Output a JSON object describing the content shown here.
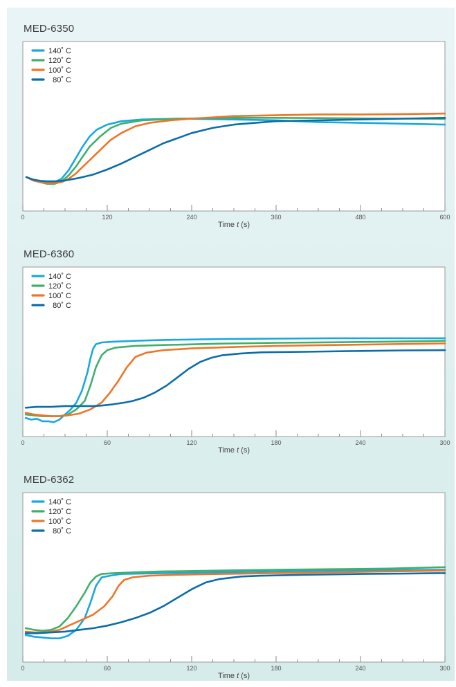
{
  "chart_data": [
    {
      "type": "line",
      "title": "MED-6350",
      "xlabel_prefix": "Time ",
      "xlabel_var": "t",
      "xlabel_unit": " (s)",
      "xlim": [
        0,
        600
      ],
      "ylim": [
        0,
        1
      ],
      "xticks": [
        0,
        120,
        240,
        360,
        480,
        600
      ],
      "minor_step": 30,
      "grid": false,
      "legend_position": "top-left",
      "series": [
        {
          "name": "140˚ C",
          "color": "#1aa7df",
          "points": [
            [
              5,
              0.2
            ],
            [
              15,
              0.18
            ],
            [
              25,
              0.17
            ],
            [
              35,
              0.165
            ],
            [
              45,
              0.17
            ],
            [
              55,
              0.19
            ],
            [
              65,
              0.24
            ],
            [
              75,
              0.31
            ],
            [
              85,
              0.38
            ],
            [
              95,
              0.44
            ],
            [
              105,
              0.48
            ],
            [
              120,
              0.51
            ],
            [
              140,
              0.53
            ],
            [
              170,
              0.54
            ],
            [
              220,
              0.545
            ],
            [
              300,
              0.54
            ],
            [
              360,
              0.535
            ],
            [
              420,
              0.525
            ],
            [
              480,
              0.52
            ],
            [
              540,
              0.515
            ],
            [
              600,
              0.51
            ]
          ]
        },
        {
          "name": "120˚ C",
          "color": "#3fb06b",
          "points": [
            [
              5,
              0.2
            ],
            [
              15,
              0.18
            ],
            [
              25,
              0.17
            ],
            [
              35,
              0.16
            ],
            [
              45,
              0.16
            ],
            [
              55,
              0.175
            ],
            [
              65,
              0.21
            ],
            [
              75,
              0.26
            ],
            [
              85,
              0.32
            ],
            [
              95,
              0.38
            ],
            [
              110,
              0.44
            ],
            [
              125,
              0.49
            ],
            [
              140,
              0.515
            ],
            [
              170,
              0.535
            ],
            [
              220,
              0.545
            ],
            [
              300,
              0.55
            ],
            [
              360,
              0.55
            ],
            [
              420,
              0.548
            ],
            [
              480,
              0.546
            ],
            [
              540,
              0.545
            ],
            [
              600,
              0.544
            ]
          ]
        },
        {
          "name": "100˚ C",
          "color": "#ee7527",
          "points": [
            [
              5,
              0.2
            ],
            [
              15,
              0.18
            ],
            [
              25,
              0.17
            ],
            [
              35,
              0.165
            ],
            [
              45,
              0.165
            ],
            [
              55,
              0.17
            ],
            [
              65,
              0.19
            ],
            [
              75,
              0.22
            ],
            [
              85,
              0.26
            ],
            [
              95,
              0.3
            ],
            [
              110,
              0.36
            ],
            [
              125,
              0.42
            ],
            [
              140,
              0.46
            ],
            [
              160,
              0.5
            ],
            [
              180,
              0.52
            ],
            [
              210,
              0.535
            ],
            [
              240,
              0.545
            ],
            [
              300,
              0.56
            ],
            [
              360,
              0.565
            ],
            [
              420,
              0.57
            ],
            [
              480,
              0.57
            ],
            [
              540,
              0.572
            ],
            [
              600,
              0.575
            ]
          ]
        },
        {
          "name": "80˚ C",
          "color": "#0b6da8",
          "points": [
            [
              5,
              0.2
            ],
            [
              15,
              0.185
            ],
            [
              25,
              0.178
            ],
            [
              35,
              0.175
            ],
            [
              45,
              0.175
            ],
            [
              60,
              0.18
            ],
            [
              80,
              0.195
            ],
            [
              100,
              0.215
            ],
            [
              120,
              0.245
            ],
            [
              140,
              0.28
            ],
            [
              160,
              0.32
            ],
            [
              180,
              0.36
            ],
            [
              200,
              0.4
            ],
            [
              220,
              0.43
            ],
            [
              240,
              0.46
            ],
            [
              270,
              0.49
            ],
            [
              300,
              0.51
            ],
            [
              330,
              0.52
            ],
            [
              360,
              0.53
            ],
            [
              420,
              0.535
            ],
            [
              480,
              0.54
            ],
            [
              540,
              0.545
            ],
            [
              600,
              0.55
            ]
          ]
        }
      ]
    },
    {
      "type": "line",
      "title": "MED-6360",
      "xlabel_prefix": "Time ",
      "xlabel_var": "t",
      "xlabel_unit": " (s)",
      "xlim": [
        0,
        300
      ],
      "ylim": [
        0,
        1
      ],
      "xticks": [
        0,
        60,
        120,
        180,
        240,
        300
      ],
      "minor_step": 15,
      "grid": false,
      "legend_position": "top-left",
      "series": [
        {
          "name": "140˚ C",
          "color": "#1aa7df",
          "points": [
            [
              2,
              0.11
            ],
            [
              6,
              0.1
            ],
            [
              10,
              0.105
            ],
            [
              14,
              0.09
            ],
            [
              18,
              0.09
            ],
            [
              22,
              0.085
            ],
            [
              26,
              0.1
            ],
            [
              30,
              0.13
            ],
            [
              34,
              0.16
            ],
            [
              38,
              0.2
            ],
            [
              42,
              0.27
            ],
            [
              46,
              0.38
            ],
            [
              48,
              0.46
            ],
            [
              50,
              0.52
            ],
            [
              52,
              0.545
            ],
            [
              56,
              0.555
            ],
            [
              65,
              0.56
            ],
            [
              80,
              0.565
            ],
            [
              100,
              0.57
            ],
            [
              140,
              0.575
            ],
            [
              180,
              0.578
            ],
            [
              220,
              0.58
            ],
            [
              260,
              0.58
            ],
            [
              300,
              0.58
            ]
          ]
        },
        {
          "name": "120˚ C",
          "color": "#3fb06b",
          "points": [
            [
              2,
              0.13
            ],
            [
              8,
              0.125
            ],
            [
              14,
              0.12
            ],
            [
              20,
              0.12
            ],
            [
              26,
              0.12
            ],
            [
              32,
              0.13
            ],
            [
              38,
              0.16
            ],
            [
              44,
              0.21
            ],
            [
              48,
              0.3
            ],
            [
              52,
              0.41
            ],
            [
              56,
              0.48
            ],
            [
              60,
              0.51
            ],
            [
              66,
              0.525
            ],
            [
              80,
              0.535
            ],
            [
              100,
              0.54
            ],
            [
              140,
              0.548
            ],
            [
              180,
              0.553
            ],
            [
              220,
              0.556
            ],
            [
              260,
              0.56
            ],
            [
              300,
              0.565
            ]
          ]
        },
        {
          "name": "100˚ C",
          "color": "#ee7527",
          "points": [
            [
              2,
              0.14
            ],
            [
              8,
              0.13
            ],
            [
              14,
              0.125
            ],
            [
              20,
              0.12
            ],
            [
              26,
              0.12
            ],
            [
              32,
              0.125
            ],
            [
              40,
              0.135
            ],
            [
              48,
              0.16
            ],
            [
              56,
              0.2
            ],
            [
              62,
              0.26
            ],
            [
              68,
              0.33
            ],
            [
              74,
              0.41
            ],
            [
              80,
              0.47
            ],
            [
              88,
              0.495
            ],
            [
              100,
              0.51
            ],
            [
              120,
              0.52
            ],
            [
              150,
              0.528
            ],
            [
              180,
              0.535
            ],
            [
              220,
              0.54
            ],
            [
              260,
              0.545
            ],
            [
              300,
              0.55
            ]
          ]
        },
        {
          "name": "80˚ C",
          "color": "#0b6da8",
          "points": [
            [
              2,
              0.17
            ],
            [
              10,
              0.175
            ],
            [
              20,
              0.175
            ],
            [
              30,
              0.18
            ],
            [
              40,
              0.18
            ],
            [
              50,
              0.18
            ],
            [
              56,
              0.183
            ],
            [
              64,
              0.19
            ],
            [
              72,
              0.2
            ],
            [
              78,
              0.21
            ],
            [
              86,
              0.23
            ],
            [
              94,
              0.26
            ],
            [
              102,
              0.3
            ],
            [
              110,
              0.35
            ],
            [
              118,
              0.4
            ],
            [
              126,
              0.44
            ],
            [
              134,
              0.465
            ],
            [
              142,
              0.48
            ],
            [
              155,
              0.49
            ],
            [
              170,
              0.497
            ],
            [
              200,
              0.5
            ],
            [
              240,
              0.505
            ],
            [
              270,
              0.508
            ],
            [
              300,
              0.51
            ]
          ]
        }
      ]
    },
    {
      "type": "line",
      "title": "MED-6362",
      "xlabel_prefix": "Time ",
      "xlabel_var": "t",
      "xlabel_unit": " (s)",
      "xlim": [
        0,
        300
      ],
      "ylim": [
        0,
        1
      ],
      "xticks": [
        0,
        60,
        120,
        180,
        240,
        300
      ],
      "minor_step": 15,
      "grid": false,
      "legend_position": "top-left",
      "series": [
        {
          "name": "140˚ C",
          "color": "#1aa7df",
          "points": [
            [
              2,
              0.16
            ],
            [
              8,
              0.15
            ],
            [
              14,
              0.145
            ],
            [
              20,
              0.14
            ],
            [
              26,
              0.14
            ],
            [
              32,
              0.155
            ],
            [
              38,
              0.19
            ],
            [
              44,
              0.26
            ],
            [
              48,
              0.35
            ],
            [
              52,
              0.45
            ],
            [
              56,
              0.5
            ],
            [
              62,
              0.51
            ],
            [
              70,
              0.52
            ],
            [
              100,
              0.525
            ],
            [
              140,
              0.53
            ],
            [
              180,
              0.535
            ],
            [
              220,
              0.54
            ],
            [
              260,
              0.543
            ],
            [
              300,
              0.545
            ]
          ]
        },
        {
          "name": "120˚ C",
          "color": "#3fb06b",
          "points": [
            [
              2,
              0.2
            ],
            [
              8,
              0.19
            ],
            [
              14,
              0.185
            ],
            [
              20,
              0.19
            ],
            [
              26,
              0.21
            ],
            [
              32,
              0.26
            ],
            [
              38,
              0.33
            ],
            [
              44,
              0.41
            ],
            [
              48,
              0.47
            ],
            [
              52,
              0.505
            ],
            [
              56,
              0.52
            ],
            [
              65,
              0.525
            ],
            [
              80,
              0.53
            ],
            [
              100,
              0.535
            ],
            [
              140,
              0.54
            ],
            [
              180,
              0.545
            ],
            [
              220,
              0.548
            ],
            [
              260,
              0.552
            ],
            [
              300,
              0.56
            ]
          ]
        },
        {
          "name": "100˚ C",
          "color": "#ee7527",
          "points": [
            [
              2,
              0.18
            ],
            [
              8,
              0.175
            ],
            [
              14,
              0.175
            ],
            [
              20,
              0.18
            ],
            [
              26,
              0.19
            ],
            [
              34,
              0.22
            ],
            [
              42,
              0.25
            ],
            [
              50,
              0.28
            ],
            [
              58,
              0.33
            ],
            [
              64,
              0.39
            ],
            [
              68,
              0.45
            ],
            [
              72,
              0.485
            ],
            [
              78,
              0.5
            ],
            [
              90,
              0.51
            ],
            [
              110,
              0.515
            ],
            [
              140,
              0.52
            ],
            [
              180,
              0.525
            ],
            [
              220,
              0.53
            ],
            [
              260,
              0.535
            ],
            [
              300,
              0.54
            ]
          ]
        },
        {
          "name": "80˚ C",
          "color": "#0b6da8",
          "points": [
            [
              2,
              0.17
            ],
            [
              10,
              0.17
            ],
            [
              20,
              0.175
            ],
            [
              30,
              0.18
            ],
            [
              40,
              0.19
            ],
            [
              50,
              0.2
            ],
            [
              60,
              0.215
            ],
            [
              70,
              0.235
            ],
            [
              80,
              0.26
            ],
            [
              90,
              0.29
            ],
            [
              100,
              0.33
            ],
            [
              110,
              0.38
            ],
            [
              120,
              0.43
            ],
            [
              130,
              0.47
            ],
            [
              140,
              0.49
            ],
            [
              155,
              0.505
            ],
            [
              170,
              0.51
            ],
            [
              200,
              0.515
            ],
            [
              240,
              0.52
            ],
            [
              270,
              0.522
            ],
            [
              300,
              0.525
            ]
          ]
        }
      ]
    }
  ]
}
